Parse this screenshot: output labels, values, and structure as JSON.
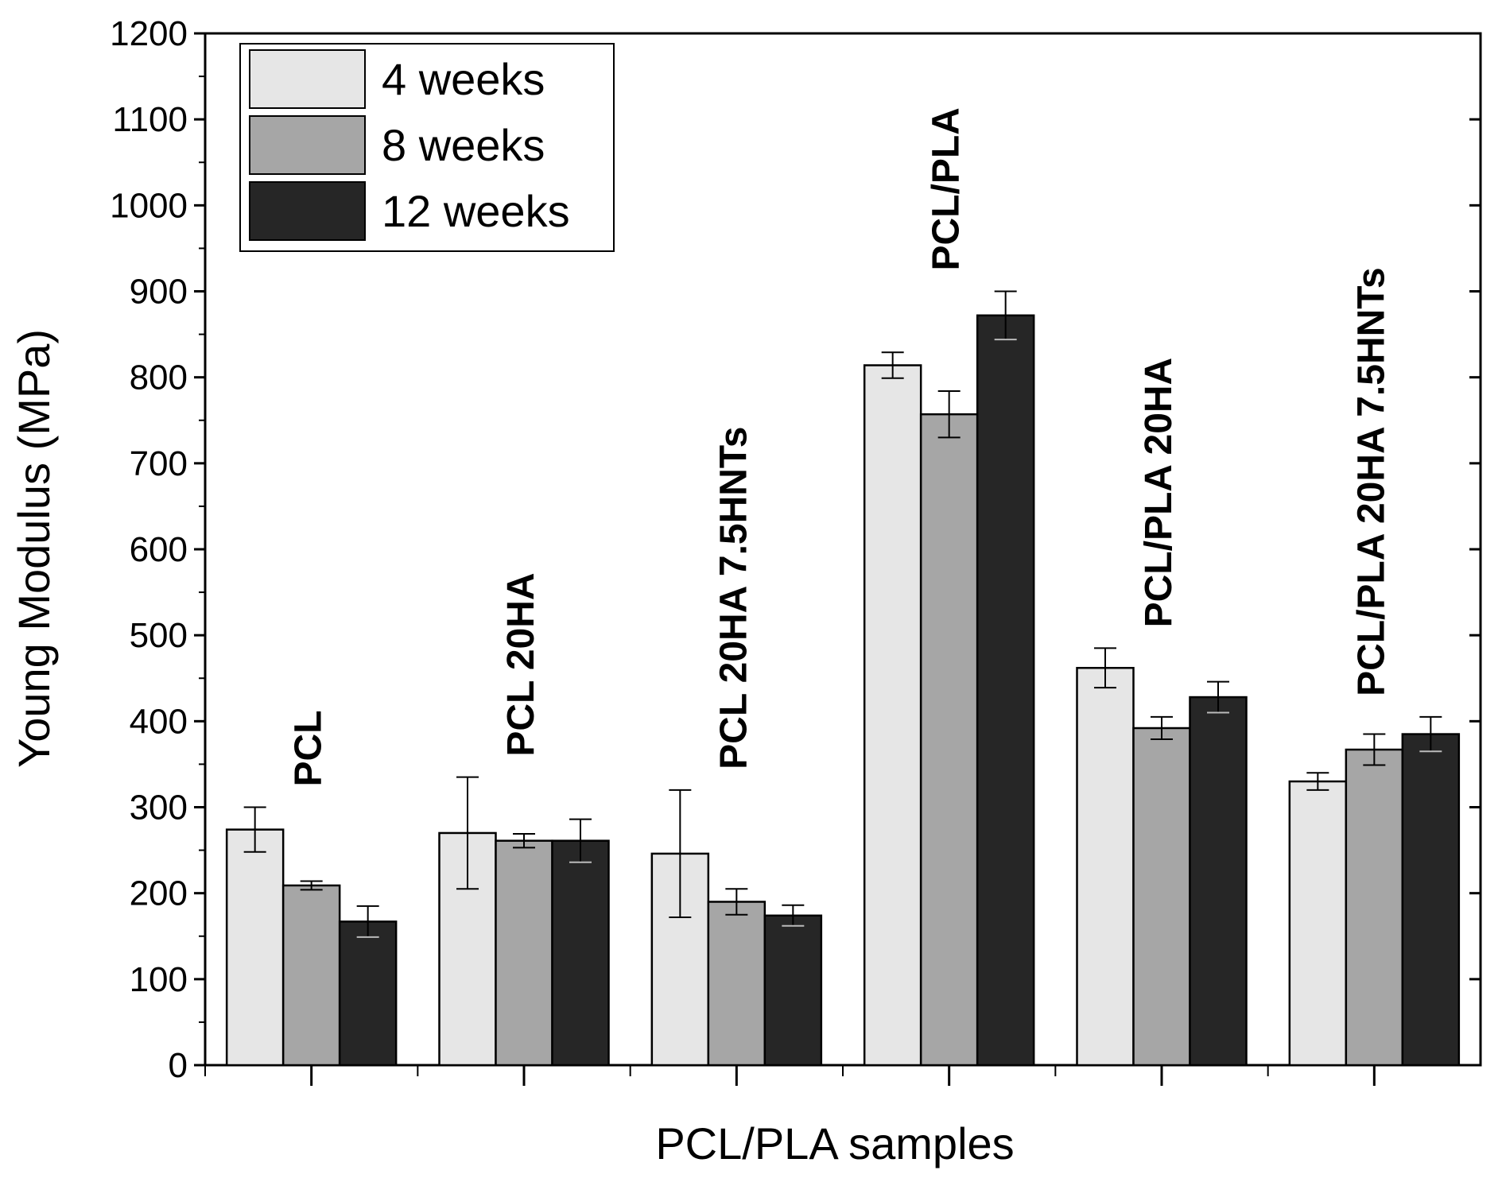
{
  "chart_data": {
    "type": "bar",
    "xlabel": "PCL/PLA samples",
    "ylabel": "Young Modulus (MPa)",
    "ylim": [
      0,
      1200
    ],
    "yticks": [
      0,
      100,
      200,
      300,
      400,
      500,
      600,
      700,
      800,
      900,
      1000,
      1100,
      1200
    ],
    "legend_position": "top-left",
    "grid": false,
    "categories": [
      "PCL",
      "PCL 20HA",
      "PCL 20HA 7.5HNTs",
      "PCL/PLA",
      "PCL/PLA 20HA",
      "PCL/PLA 20HA 7.5HNTs"
    ],
    "series": [
      {
        "name": "4 weeks",
        "color": "#e6e6e6",
        "values": [
          274,
          270,
          246,
          814,
          462,
          330
        ],
        "errors": [
          26,
          65,
          74,
          15,
          23,
          10
        ]
      },
      {
        "name": "8 weeks",
        "color": "#a6a6a6",
        "values": [
          209,
          261,
          190,
          757,
          392,
          367
        ],
        "errors": [
          5,
          8,
          15,
          27,
          13,
          18
        ]
      },
      {
        "name": "12 weeks",
        "color": "#262626",
        "values": [
          167,
          261,
          174,
          872,
          428,
          385
        ],
        "errors": [
          18,
          25,
          12,
          28,
          18,
          20
        ]
      }
    ]
  }
}
